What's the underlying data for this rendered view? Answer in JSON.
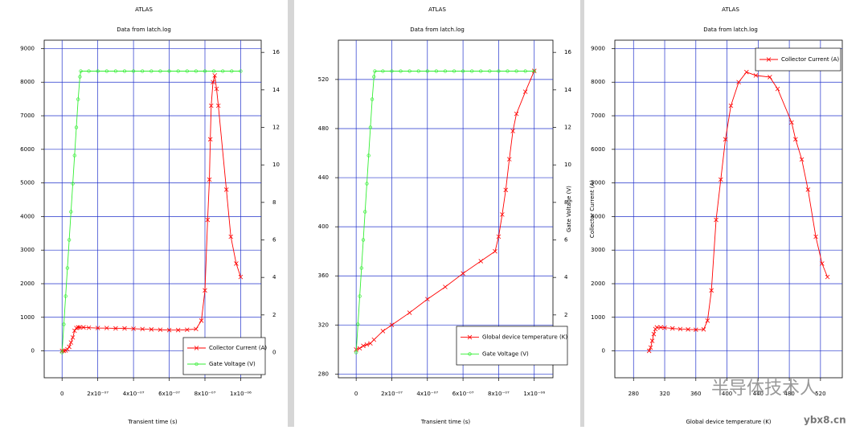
{
  "chart_data": [
    {
      "type": "line",
      "title": "ATLAS",
      "subtitle": "Data from latch.log",
      "xlabel": "Transient time (s)",
      "xlim": [
        -1e-07,
        1.115e-06
      ],
      "xticks": [
        0,
        {
          "value": 2e-07,
          "label": "2x10⁻⁰⁷"
        },
        {
          "value": 4e-07,
          "label": "4x10⁻⁰⁷"
        },
        {
          "value": 6e-07,
          "label": "6x10⁻⁰⁷"
        },
        {
          "value": 8e-07,
          "label": "8x10⁻⁰⁷"
        },
        {
          "value": 1e-06,
          "label": "1x10⁻⁰⁶"
        }
      ],
      "ylim": [
        -800,
        9250
      ],
      "yticks": [
        0,
        1000,
        2000,
        3000,
        4000,
        5000,
        6000,
        7000,
        8000,
        9000
      ],
      "y2lim": [
        -1.35,
        16.65
      ],
      "y2ticks": [
        0,
        2,
        4,
        6,
        8,
        10,
        12,
        14,
        16
      ],
      "grid": true,
      "legend": "lower right",
      "series": [
        {
          "name": "Collector Current (A)",
          "color": "#ff0000",
          "marker": "x",
          "x": [
            0,
            1e-08,
            2e-08,
            3e-08,
            4e-08,
            5e-08,
            6e-08,
            7e-08,
            8e-08,
            9e-08,
            1e-07,
            1.2e-07,
            1.5e-07,
            2e-07,
            2.5e-07,
            3e-07,
            3.5e-07,
            4e-07,
            4.5e-07,
            5e-07,
            5.5e-07,
            6e-07,
            6.5e-07,
            7e-07,
            7.5e-07,
            7.8e-07,
            8e-07,
            8.15e-07,
            8.25e-07,
            8.3e-07,
            8.35e-07,
            8.45e-07,
            8.55e-07,
            8.65e-07,
            8.75e-07,
            9.2e-07,
            9.45e-07,
            9.75e-07,
            1e-06
          ],
          "values": [
            0,
            0,
            10,
            50,
            120,
            250,
            400,
            600,
            680,
            700,
            700,
            700,
            690,
            680,
            680,
            670,
            670,
            660,
            650,
            640,
            630,
            620,
            620,
            630,
            650,
            900,
            1800,
            3900,
            5100,
            6300,
            7300,
            8000,
            8200,
            7800,
            7300,
            4800,
            3400,
            2600,
            2200
          ]
        },
        {
          "name": "Gate Voltage (V)",
          "color": "#33ee33",
          "marker": "circle",
          "axis": "y2",
          "x": [
            0,
            1e-08,
            2e-08,
            3e-08,
            4e-08,
            5e-08,
            6e-08,
            7e-08,
            8e-08,
            9e-08,
            1e-07,
            1.05e-07,
            1.5e-07,
            2e-07,
            2.5e-07,
            3e-07,
            3.5e-07,
            4e-07,
            4.5e-07,
            5e-07,
            5.5e-07,
            6e-07,
            6.5e-07,
            7e-07,
            7.5e-07,
            8e-07,
            8.5e-07,
            9e-07,
            9.5e-07,
            1e-06
          ],
          "values": [
            0,
            1.5,
            3,
            4.5,
            6,
            7.5,
            9,
            10.5,
            12,
            13.5,
            14.7,
            15,
            15,
            15,
            15,
            15,
            15,
            15,
            15,
            15,
            15,
            15,
            15,
            15,
            15,
            15,
            15,
            15,
            15,
            15
          ]
        }
      ]
    },
    {
      "type": "line",
      "title": "ATLAS",
      "subtitle": "Data from latch.log",
      "xlabel": "Transient time (s)",
      "y2label": "Gate Voltage (V)",
      "xlim": [
        -1e-07,
        1.105e-06
      ],
      "xticks": [
        0,
        {
          "value": 2e-07,
          "label": "2x10⁻⁰⁷"
        },
        {
          "value": 4e-07,
          "label": "4x10⁻⁰⁷"
        },
        {
          "value": 6e-07,
          "label": "6x10⁻⁰⁷"
        },
        {
          "value": 8e-07,
          "label": "8x10⁻⁰⁷"
        },
        {
          "value": 1e-06,
          "label": "1x10⁻⁰⁶"
        }
      ],
      "ylim": [
        277,
        552
      ],
      "yticks": [
        280,
        320,
        360,
        400,
        440,
        480,
        520
      ],
      "y2lim": [
        -1.35,
        16.65
      ],
      "y2ticks": [
        0,
        2,
        4,
        6,
        8,
        10,
        12,
        14,
        16
      ],
      "grid": true,
      "legend": "lower right",
      "series": [
        {
          "name": "Global device temperature (K)",
          "color": "#ff0000",
          "marker": "x",
          "x": [
            0,
            2e-08,
            4e-08,
            6e-08,
            8e-08,
            1e-07,
            1.5e-07,
            2e-07,
            3e-07,
            4e-07,
            5e-07,
            6e-07,
            7e-07,
            7.8e-07,
            8e-07,
            8.2e-07,
            8.4e-07,
            8.6e-07,
            8.8e-07,
            9e-07,
            9.5e-07,
            1e-06
          ],
          "values": [
            300,
            301,
            303,
            304,
            305,
            308,
            315,
            320,
            330,
            341,
            351,
            362,
            372,
            380,
            392,
            410,
            430,
            455,
            478,
            492,
            510,
            527
          ]
        },
        {
          "name": "Gate Voltage (V)",
          "color": "#33ee33",
          "marker": "circle",
          "axis": "y2",
          "x": [
            0,
            1e-08,
            2e-08,
            3e-08,
            4e-08,
            5e-08,
            6e-08,
            7e-08,
            8e-08,
            9e-08,
            1e-07,
            1.05e-07,
            1.5e-07,
            2e-07,
            2.5e-07,
            3e-07,
            3.5e-07,
            4e-07,
            4.5e-07,
            5e-07,
            5.5e-07,
            6e-07,
            6.5e-07,
            7e-07,
            7.5e-07,
            8e-07,
            8.5e-07,
            9e-07,
            9.5e-07,
            1e-06
          ],
          "values": [
            0,
            1.5,
            3,
            4.5,
            6,
            7.5,
            9,
            10.5,
            12,
            13.5,
            14.7,
            15,
            15,
            15,
            15,
            15,
            15,
            15,
            15,
            15,
            15,
            15,
            15,
            15,
            15,
            15,
            15,
            15,
            15,
            15
          ]
        }
      ]
    },
    {
      "type": "line",
      "title": "ATLAS",
      "subtitle": "Data from latch.log",
      "xlabel": "Global device temperature (K)",
      "ylabel": "Collector Current (A)",
      "xlim": [
        256,
        548
      ],
      "xticks": [
        280,
        320,
        360,
        400,
        440,
        480,
        520
      ],
      "ylim": [
        -800,
        9250
      ],
      "yticks": [
        0,
        1000,
        2000,
        3000,
        4000,
        5000,
        6000,
        7000,
        8000,
        9000
      ],
      "grid": true,
      "legend": "upper right",
      "series": [
        {
          "name": "Collector Current (A)",
          "color": "#ff0000",
          "marker": "x",
          "x": [
            300,
            302,
            304,
            306,
            308,
            310,
            315,
            320,
            330,
            340,
            350,
            360,
            370,
            375,
            380,
            386,
            392,
            398,
            405,
            415,
            425,
            437,
            455,
            465,
            483,
            488,
            496,
            504,
            514,
            522,
            529
          ],
          "values": [
            0,
            100,
            300,
            500,
            650,
            700,
            700,
            690,
            670,
            650,
            640,
            630,
            640,
            900,
            1800,
            3900,
            5100,
            6300,
            7300,
            8000,
            8300,
            8200,
            8150,
            7800,
            6800,
            6300,
            5700,
            4800,
            3400,
            2600,
            2200
          ]
        }
      ]
    }
  ],
  "watermark": {
    "text": "半导体技术人",
    "site": "ybx8.cn"
  }
}
